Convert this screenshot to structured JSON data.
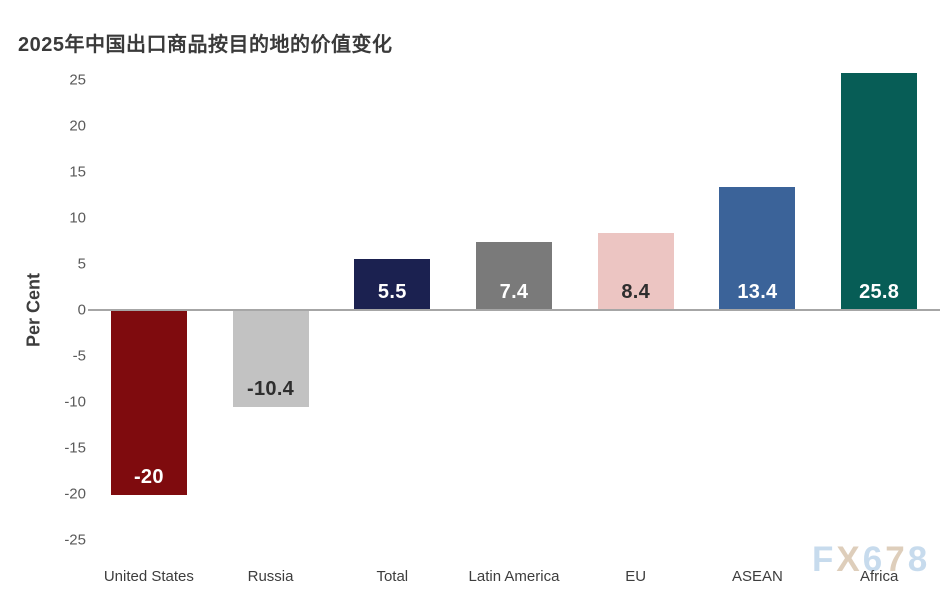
{
  "header": {
    "title": "2025年中国出口商品按目的地的价值变化"
  },
  "chart_data": {
    "type": "bar",
    "title": "2025年中国出口商品按目的地的价值变化",
    "xlabel": "",
    "ylabel": "Per Cent",
    "ylim": [
      -25,
      25
    ],
    "yticks": [
      25,
      20,
      15,
      10,
      5,
      0,
      -5,
      -10,
      -15,
      -20,
      -25
    ],
    "grid": false,
    "legend": null,
    "categories": [
      "United States",
      "Russia",
      "Total",
      "Latin America",
      "EU",
      "ASEAN",
      "Africa"
    ],
    "values": [
      -20,
      -10.4,
      5.5,
      7.4,
      8.4,
      13.4,
      25.8
    ],
    "value_labels": [
      "-20",
      "-10.4",
      "5.5",
      "7.4",
      "8.4",
      "13.4",
      "25.8"
    ],
    "bar_colors": [
      "#7f0b0e",
      "#c2c2c2",
      "#1b2150",
      "#7a7a7a",
      "#ecc5c2",
      "#3b6399",
      "#075d56"
    ],
    "value_label_colors": [
      "#ffffff",
      "#2e2e2e",
      "#ffffff",
      "#ffffff",
      "#2e2e2e",
      "#ffffff",
      "#ffffff"
    ],
    "axis_line_color": "#a6a6a6",
    "tick_color": "#5a5a5a",
    "category_label_color": "#3d3d3d"
  },
  "watermark": {
    "text": "FX678",
    "letters": [
      {
        "char": "F",
        "color": "#c2d8ec"
      },
      {
        "char": "X",
        "color": "#dbc9b4"
      },
      {
        "char": "6",
        "color": "#c2d8ec"
      },
      {
        "char": "7",
        "color": "#dbc9b4"
      },
      {
        "char": "8",
        "color": "#c2d8ec"
      }
    ]
  }
}
